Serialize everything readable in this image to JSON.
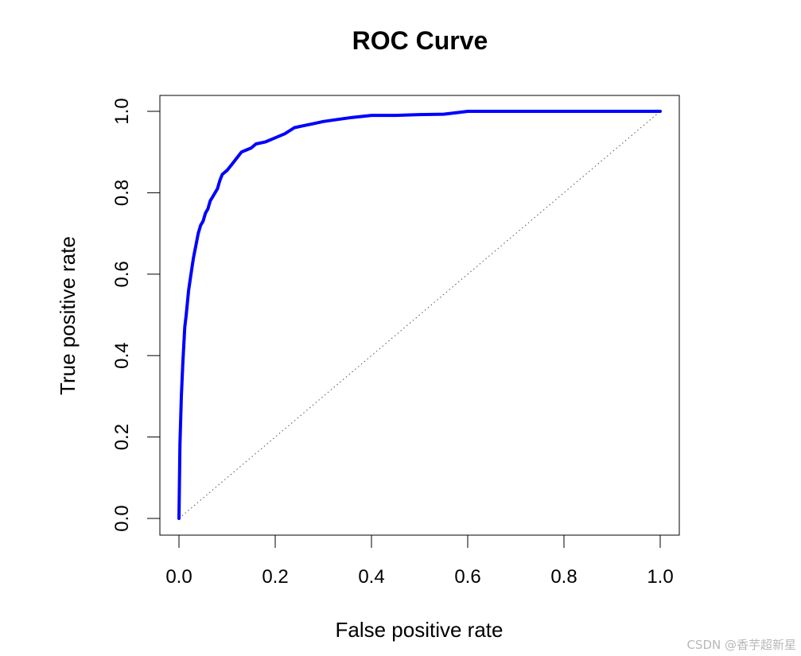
{
  "chart_data": {
    "type": "line",
    "title": "ROC Curve",
    "xlabel": "False positive rate",
    "ylabel": "True positive rate",
    "xlim": [
      0,
      1
    ],
    "ylim": [
      0,
      1
    ],
    "x_ticks": [
      "0.0",
      "0.2",
      "0.4",
      "0.6",
      "0.8",
      "1.0"
    ],
    "y_ticks": [
      "0.0",
      "0.2",
      "0.4",
      "0.6",
      "0.8",
      "1.0"
    ],
    "grid": false,
    "series": [
      {
        "color": "#0000ff",
        "x": [
          0,
          0.002,
          0.005,
          0.008,
          0.012,
          0.015,
          0.02,
          0.025,
          0.03,
          0.035,
          0.04,
          0.045,
          0.05,
          0.055,
          0.06,
          0.065,
          0.07,
          0.075,
          0.08,
          0.085,
          0.09,
          0.1,
          0.11,
          0.12,
          0.13,
          0.14,
          0.15,
          0.16,
          0.18,
          0.2,
          0.22,
          0.24,
          0.26,
          0.28,
          0.3,
          0.33,
          0.36,
          0.4,
          0.45,
          0.5,
          0.55,
          0.58,
          0.6,
          0.7,
          0.8,
          0.9,
          1.0
        ],
        "y": [
          0,
          0.18,
          0.3,
          0.38,
          0.47,
          0.5,
          0.56,
          0.6,
          0.64,
          0.67,
          0.7,
          0.72,
          0.73,
          0.75,
          0.76,
          0.78,
          0.79,
          0.8,
          0.81,
          0.83,
          0.845,
          0.855,
          0.87,
          0.885,
          0.9,
          0.905,
          0.91,
          0.92,
          0.925,
          0.935,
          0.945,
          0.96,
          0.965,
          0.97,
          0.975,
          0.98,
          0.985,
          0.99,
          0.99,
          0.992,
          0.993,
          0.997,
          1.0,
          1.0,
          1.0,
          1.0,
          1.0
        ]
      },
      {
        "style": "dotted",
        "color": "#555555",
        "x": [
          0,
          1
        ],
        "y": [
          0,
          1
        ]
      }
    ]
  },
  "watermark": "CSDN @香芋超新星"
}
